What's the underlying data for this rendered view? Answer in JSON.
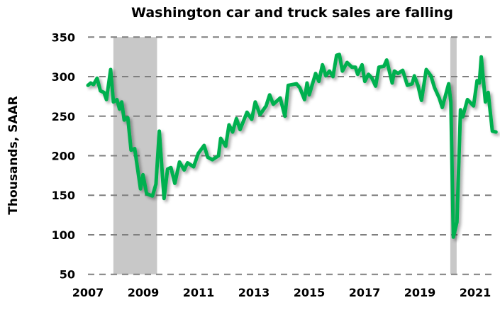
{
  "chart_data": {
    "type": "line",
    "title": "Washington car and truck sales are falling",
    "xlabel": "",
    "ylabel": "Thousands, SAAR",
    "xlim": [
      2007,
      2021.8
    ],
    "ylim": [
      50,
      350
    ],
    "grid": true,
    "x_ticks": [
      "2007",
      "2009",
      "2011",
      "2013",
      "2015",
      "2017",
      "2019",
      "2021"
    ],
    "y_ticks": [
      "50",
      "100",
      "150",
      "200",
      "250",
      "300",
      "350"
    ],
    "recessions": [
      [
        2007.92,
        2009.5
      ],
      [
        2020.1,
        2020.33
      ]
    ],
    "line_color": "#00b050",
    "recession_color": "#c8c8c8",
    "series": [
      {
        "name": "Washington car and truck sales",
        "x": [
          2007.0,
          2007.1,
          2007.2,
          2007.33,
          2007.45,
          2007.58,
          2007.67,
          2007.82,
          2007.92,
          2008.05,
          2008.14,
          2008.22,
          2008.31,
          2008.44,
          2008.56,
          2008.69,
          2008.9,
          2008.99,
          2009.12,
          2009.33,
          2009.46,
          2009.58,
          2009.75,
          2009.88,
          2010.0,
          2010.14,
          2010.31,
          2010.48,
          2010.6,
          2010.82,
          2010.99,
          2011.2,
          2011.33,
          2011.5,
          2011.72,
          2011.8,
          2011.98,
          2012.1,
          2012.23,
          2012.37,
          2012.5,
          2012.75,
          2012.92,
          2013.05,
          2013.22,
          2013.44,
          2013.57,
          2013.7,
          2013.95,
          2014.12,
          2014.24,
          2014.54,
          2014.66,
          2014.83,
          2014.92,
          2015.0,
          2015.23,
          2015.35,
          2015.48,
          2015.6,
          2015.73,
          2015.86,
          2015.99,
          2016.09,
          2016.2,
          2016.37,
          2016.54,
          2016.67,
          2016.75,
          2016.91,
          2017.01,
          2017.14,
          2017.27,
          2017.4,
          2017.52,
          2017.7,
          2017.8,
          2018.0,
          2018.08,
          2018.21,
          2018.38,
          2018.55,
          2018.72,
          2018.8,
          2018.93,
          2019.06,
          2019.23,
          2019.4,
          2019.53,
          2019.7,
          2019.81,
          2020.04,
          2020.12,
          2020.21,
          2020.34,
          2020.47,
          2020.55,
          2020.72,
          2020.94,
          2021.07,
          2021.15,
          2021.22,
          2021.37,
          2021.47,
          2021.62,
          2021.75
        ],
        "y": [
          289,
          292,
          290,
          298,
          282,
          280,
          271,
          309,
          268,
          271,
          259,
          268,
          245,
          248,
          207,
          209,
          158,
          176,
          152,
          149,
          164,
          231,
          146,
          183,
          185,
          165,
          192,
          182,
          191,
          186,
          203,
          213,
          198,
          195,
          200,
          222,
          212,
          239,
          230,
          247,
          233,
          255,
          246,
          268,
          252,
          263,
          277,
          265,
          273,
          250,
          289,
          291,
          286,
          271,
          292,
          277,
          304,
          294,
          315,
          301,
          307,
          300,
          327,
          328,
          307,
          318,
          312,
          312,
          303,
          315,
          294,
          303,
          298,
          288,
          312,
          313,
          321,
          292,
          307,
          304,
          308,
          289,
          291,
          301,
          289,
          270,
          309,
          301,
          286,
          273,
          261,
          291,
          268,
          97,
          116,
          258,
          249,
          271,
          263,
          295,
          292,
          325,
          268,
          280,
          231,
          230
        ]
      }
    ]
  }
}
